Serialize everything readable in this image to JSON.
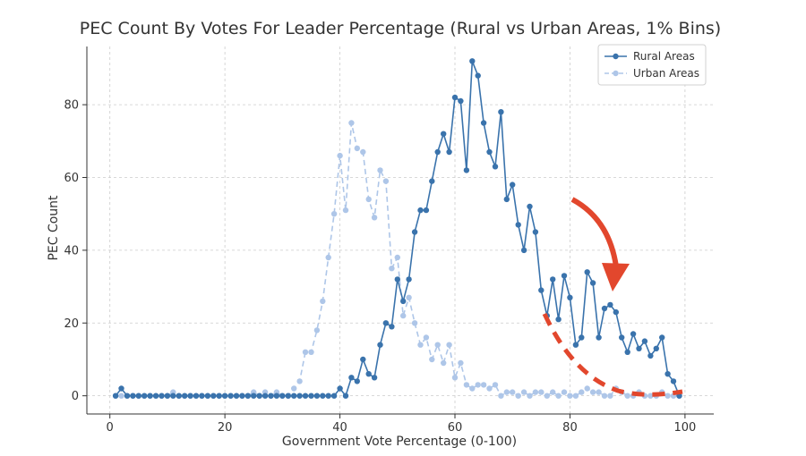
{
  "chart_data": {
    "type": "line",
    "title": "PEC Count By Votes For Leader Percentage (Rural vs Urban Areas, 1% Bins)",
    "xlabel": "Government Vote Percentage (0-100)",
    "ylabel": "PEC Count",
    "xlim": [
      -4,
      105
    ],
    "ylim": [
      -5,
      96
    ],
    "xticks": [
      0,
      20,
      40,
      60,
      80,
      100
    ],
    "yticks": [
      0,
      20,
      40,
      60,
      80
    ],
    "grid": true,
    "legend_position": "top-right",
    "series": [
      {
        "name": "Rural Areas",
        "color": "#3a73ac",
        "style": "solid",
        "x": [
          1,
          2,
          3,
          4,
          5,
          6,
          7,
          8,
          9,
          10,
          11,
          12,
          13,
          14,
          15,
          16,
          17,
          18,
          19,
          20,
          21,
          22,
          23,
          24,
          25,
          26,
          27,
          28,
          29,
          30,
          31,
          32,
          33,
          34,
          35,
          36,
          37,
          38,
          39,
          40,
          41,
          42,
          43,
          44,
          45,
          46,
          47,
          48,
          49,
          50,
          51,
          52,
          53,
          54,
          55,
          56,
          57,
          58,
          59,
          60,
          61,
          62,
          63,
          64,
          65,
          66,
          67,
          68,
          69,
          70,
          71,
          72,
          73,
          74,
          75,
          76,
          77,
          78,
          79,
          80,
          81,
          82,
          83,
          84,
          85,
          86,
          87,
          88,
          89,
          90,
          91,
          92,
          93,
          94,
          95,
          96,
          97,
          98,
          99
        ],
        "values": [
          0,
          2,
          0,
          0,
          0,
          0,
          0,
          0,
          0,
          0,
          0,
          0,
          0,
          0,
          0,
          0,
          0,
          0,
          0,
          0,
          0,
          0,
          0,
          0,
          0,
          0,
          0,
          0,
          0,
          0,
          0,
          0,
          0,
          0,
          0,
          0,
          0,
          0,
          0,
          2,
          0,
          5,
          4,
          10,
          6,
          5,
          14,
          20,
          19,
          32,
          26,
          32,
          45,
          51,
          51,
          59,
          67,
          72,
          67,
          82,
          81,
          62,
          92,
          88,
          75,
          67,
          63,
          78,
          54,
          58,
          47,
          40,
          52,
          45,
          29,
          22,
          32,
          21,
          33,
          27,
          14,
          16,
          34,
          31,
          16,
          24,
          25,
          23,
          16,
          12,
          17,
          13,
          15,
          11,
          13,
          16,
          6,
          4,
          0
        ]
      },
      {
        "name": "Urban Areas",
        "color": "#aec6e8",
        "style": "dashed",
        "x": [
          1,
          2,
          3,
          4,
          5,
          6,
          7,
          8,
          9,
          10,
          11,
          12,
          13,
          14,
          15,
          16,
          17,
          18,
          19,
          20,
          21,
          22,
          23,
          24,
          25,
          26,
          27,
          28,
          29,
          30,
          31,
          32,
          33,
          34,
          35,
          36,
          37,
          38,
          39,
          40,
          41,
          42,
          43,
          44,
          45,
          46,
          47,
          48,
          49,
          50,
          51,
          52,
          53,
          54,
          55,
          56,
          57,
          58,
          59,
          60,
          61,
          62,
          63,
          64,
          65,
          66,
          67,
          68,
          69,
          70,
          71,
          72,
          73,
          74,
          75,
          76,
          77,
          78,
          79,
          80,
          81,
          82,
          83,
          84,
          85,
          86,
          87,
          88,
          89,
          90,
          91,
          92,
          93,
          94,
          95,
          96,
          97,
          98,
          99
        ],
        "values": [
          0,
          0,
          0,
          0,
          0,
          0,
          0,
          0,
          0,
          0,
          1,
          0,
          0,
          0,
          0,
          0,
          0,
          0,
          0,
          0,
          0,
          0,
          0,
          0,
          1,
          0,
          1,
          0,
          1,
          0,
          0,
          2,
          4,
          12,
          12,
          18,
          26,
          38,
          50,
          66,
          51,
          75,
          68,
          67,
          54,
          49,
          62,
          59,
          35,
          38,
          22,
          27,
          20,
          14,
          16,
          10,
          14,
          9,
          14,
          5,
          9,
          3,
          2,
          3,
          3,
          2,
          3,
          0,
          1,
          1,
          0,
          1,
          0,
          1,
          1,
          0,
          1,
          0,
          1,
          0,
          0,
          1,
          2,
          1,
          1,
          0,
          0,
          2,
          1,
          0,
          0,
          1,
          0,
          0,
          0,
          1,
          0,
          0,
          0
        ]
      }
    ],
    "annotations": [
      {
        "type": "arrow",
        "color": "#e2472d",
        "description": "curved arrow pointing down"
      },
      {
        "type": "dashed-curve",
        "color": "#e2472d",
        "description": "expected decay curve"
      }
    ]
  }
}
